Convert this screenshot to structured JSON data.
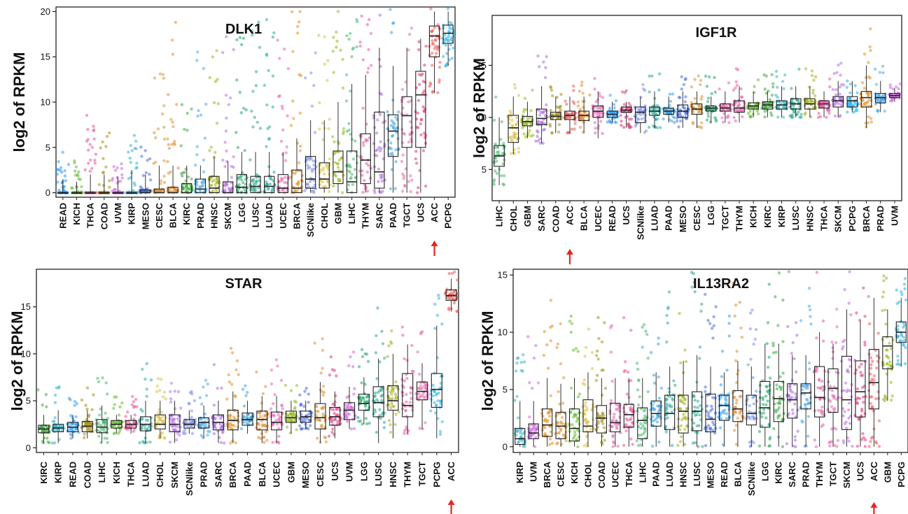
{
  "chart_data": [
    {
      "type": "box",
      "title": "DLK1",
      "ylabel": "log2 of RPKM",
      "ylim": [
        -0.5,
        20.5
      ],
      "yticks": [
        0,
        5,
        10,
        15,
        20
      ],
      "highlight": "ACC",
      "categories": [
        "READ",
        "KICH",
        "THCA",
        "COAD",
        "UVM",
        "KIRP",
        "MESO",
        "CESC",
        "BLCA",
        "KIRC",
        "PRAD",
        "HNSC",
        "SKCM",
        "LGG",
        "LUSC",
        "LUAD",
        "UCEC",
        "BRCA",
        "SCNlike",
        "CHOL",
        "GBM",
        "LIHC",
        "THYM",
        "SARC",
        "PAAD",
        "TGCT",
        "UCS",
        "ACC",
        "PCPG"
      ],
      "colors": [
        "#2f9df4",
        "#66bb33",
        "#e8559a",
        "#a68f1b",
        "#cc66dd",
        "#3bb3c6",
        "#4a6ed8",
        "#d6953a",
        "#e58a33",
        "#44a844",
        "#4aa8e8",
        "#a6b01f",
        "#b86fe8",
        "#22a86a",
        "#2fa58a",
        "#2faa9c",
        "#e861b5",
        "#e38f1f",
        "#7b8fe8",
        "#d9c046",
        "#98b81f",
        "#49b86f",
        "#e35fa5",
        "#aa69dd",
        "#3aa0e0",
        "#e56cad",
        "#dd3d7a",
        "#ee5a5a",
        "#2fb4e6"
      ],
      "boxes": [
        [
          0,
          0,
          0,
          0,
          1.5
        ],
        [
          0,
          0,
          0,
          0,
          1.2
        ],
        [
          0,
          0,
          0,
          0,
          2
        ],
        [
          0,
          0,
          0,
          0,
          2
        ],
        [
          0,
          0,
          0,
          0,
          1.8
        ],
        [
          0,
          0,
          0,
          0,
          2.5
        ],
        [
          0,
          0,
          0,
          0.3,
          2
        ],
        [
          0,
          0,
          0,
          0.4,
          3
        ],
        [
          0,
          0,
          0,
          0.6,
          3
        ],
        [
          0,
          0,
          0,
          1,
          3
        ],
        [
          0,
          0,
          0.4,
          1.5,
          3
        ],
        [
          0,
          0,
          0.5,
          1.8,
          4
        ],
        [
          0,
          0,
          0,
          1.2,
          3.5
        ],
        [
          0,
          0,
          0.6,
          2,
          4.5
        ],
        [
          0,
          0,
          0.7,
          1.8,
          4.5
        ],
        [
          0,
          0,
          0.7,
          1.8,
          4.5
        ],
        [
          0,
          0,
          0.5,
          2,
          4.5
        ],
        [
          0,
          0,
          0.5,
          2.5,
          6
        ],
        [
          0,
          0.5,
          1.5,
          4,
          8
        ],
        [
          0,
          0.5,
          1.5,
          3.3,
          8
        ],
        [
          0,
          1,
          2.3,
          4.6,
          10
        ],
        [
          0,
          0,
          1.2,
          4.6,
          12
        ],
        [
          0,
          1,
          3.6,
          6.5,
          13
        ],
        [
          0,
          0.5,
          2.3,
          8.9,
          16
        ],
        [
          0,
          4,
          6.8,
          8.6,
          14
        ],
        [
          0,
          5,
          8.5,
          10.6,
          16
        ],
        [
          0,
          5,
          10.8,
          13.4,
          17
        ],
        [
          11,
          15,
          17.3,
          18.4,
          20
        ],
        [
          14,
          16.5,
          17.6,
          18.5,
          20
        ]
      ],
      "spread": [
        3,
        3,
        8,
        5,
        2,
        5,
        4,
        11,
        17,
        8,
        13,
        15,
        15,
        14,
        15,
        15,
        14,
        18,
        10,
        10,
        12,
        19,
        14,
        17,
        14,
        16,
        17,
        20,
        20
      ]
    },
    {
      "type": "box",
      "title": "IGF1R",
      "ylabel": "log2 of RPKM",
      "ylim": [
        2,
        19.8
      ],
      "yticks": [
        5,
        10,
        15
      ],
      "highlight": "ACC",
      "categories": [
        "LIHC",
        "CHOL",
        "GBM",
        "SARC",
        "COAD",
        "ACC",
        "BLCA",
        "UCEC",
        "READ",
        "UCS",
        "SCNlike",
        "LUAD",
        "PAAD",
        "MESO",
        "CESC",
        "LGG",
        "TGCT",
        "THYM",
        "KICH",
        "KIRC",
        "KIRP",
        "LUSC",
        "HNSC",
        "THCA",
        "SKCM",
        "PCPG",
        "BRCA",
        "PRAD",
        "UVM"
      ],
      "colors": [
        "#49b86f",
        "#d9c046",
        "#98b81f",
        "#aa69dd",
        "#a68f1b",
        "#ee5a5a",
        "#e58a33",
        "#e861b5",
        "#2f9df4",
        "#dd3d7a",
        "#7b8fe8",
        "#2faa9c",
        "#3aa0e0",
        "#4a6ed8",
        "#d6953a",
        "#22a86a",
        "#e56cad",
        "#e35fa5",
        "#66bb33",
        "#44a844",
        "#3bb3c6",
        "#2fa58a",
        "#a6b01f",
        "#e8559a",
        "#b86fe8",
        "#2fb4e6",
        "#e38f1f",
        "#4aa8e8",
        "#cc66dd"
      ],
      "boxes": [
        [
          3.5,
          5.3,
          6.3,
          7.3,
          10
        ],
        [
          6.5,
          7.6,
          9,
          10.2,
          12
        ],
        [
          8,
          9.2,
          9.6,
          10.1,
          11.5
        ],
        [
          7.5,
          9.3,
          9.9,
          10.8,
          13
        ],
        [
          8.5,
          9.8,
          10.1,
          10.5,
          12
        ],
        [
          8.5,
          9.8,
          10.2,
          10.6,
          12
        ],
        [
          8.5,
          9.7,
          10.2,
          10.6,
          12
        ],
        [
          8,
          10,
          10.6,
          11.1,
          12.5
        ],
        [
          9.5,
          10,
          10.3,
          10.6,
          11.5
        ],
        [
          9,
          10.5,
          10.7,
          11,
          11.5
        ],
        [
          8.5,
          9.5,
          10.5,
          11,
          12
        ],
        [
          9,
          10.2,
          10.6,
          11,
          12.5
        ],
        [
          9.5,
          10.3,
          10.6,
          10.9,
          12
        ],
        [
          9,
          10,
          10.6,
          11.2,
          12.5
        ],
        [
          9,
          10.3,
          10.8,
          11.3,
          12.5
        ],
        [
          9.5,
          10.6,
          10.9,
          11.1,
          12
        ],
        [
          9.5,
          10.6,
          10.9,
          11.3,
          12.5
        ],
        [
          9.5,
          10.5,
          10.9,
          11.6,
          13
        ],
        [
          10,
          10.8,
          11.1,
          11.4,
          12.5
        ],
        [
          10,
          10.8,
          11.2,
          11.5,
          12.5
        ],
        [
          10,
          10.8,
          11.2,
          11.6,
          13
        ],
        [
          10,
          10.8,
          11.3,
          11.8,
          13
        ],
        [
          10,
          10.8,
          11.3,
          11.8,
          13
        ],
        [
          10,
          10.9,
          11.3,
          11.6,
          12.5
        ],
        [
          10,
          11,
          11.6,
          12,
          13.5
        ],
        [
          10.5,
          11,
          11.6,
          12,
          13.5
        ],
        [
          9,
          11,
          11.9,
          12.5,
          15
        ],
        [
          10.5,
          11.4,
          11.9,
          12.3,
          13.5
        ],
        [
          11.5,
          11.9,
          12.1,
          12.3,
          12.8
        ]
      ],
      "spread": [
        2,
        2,
        1.5,
        3,
        1.5,
        1.5,
        1.5,
        2,
        1.2,
        1.5,
        1.5,
        2,
        1.5,
        2,
        2,
        2,
        1.5,
        2,
        1.5,
        2,
        1.5,
        2,
        2,
        1.5,
        1.8,
        2,
        4,
        1.5,
        0.5
      ]
    },
    {
      "type": "box",
      "title": "STAR",
      "ylabel": "log2 of RPKM",
      "ylim": [
        -0.5,
        19
      ],
      "yticks": [
        0,
        5,
        10,
        15
      ],
      "highlight": "ACC",
      "categories": [
        "KIRC",
        "KIRP",
        "READ",
        "COAD",
        "LIHC",
        "KICH",
        "THCA",
        "LUAD",
        "CHOL",
        "SKCM",
        "SCNlike",
        "PRAD",
        "SARC",
        "BRCA",
        "PAAD",
        "BLCA",
        "UCEC",
        "GBM",
        "MESO",
        "CESC",
        "UCS",
        "UVM",
        "LGG",
        "LUSC",
        "HNSC",
        "THYM",
        "TGCT",
        "PCPG",
        "ACC"
      ],
      "colors": [
        "#44a844",
        "#3bb3c6",
        "#2f9df4",
        "#a68f1b",
        "#49b86f",
        "#66bb33",
        "#e8559a",
        "#2faa9c",
        "#d9c046",
        "#b86fe8",
        "#7b8fe8",
        "#4aa8e8",
        "#aa69dd",
        "#e38f1f",
        "#3aa0e0",
        "#e58a33",
        "#e861b5",
        "#98b81f",
        "#4a6ed8",
        "#d6953a",
        "#dd3d7a",
        "#cc66dd",
        "#22a86a",
        "#2fa58a",
        "#a6b01f",
        "#e35fa5",
        "#e56cad",
        "#2fb4e6",
        "#ee5a5a"
      ],
      "boxes": [
        [
          0.5,
          1.6,
          2,
          2.4,
          3.5
        ],
        [
          0.5,
          1.7,
          2.1,
          2.5,
          4
        ],
        [
          1,
          1.7,
          2.2,
          2.7,
          3.5
        ],
        [
          1,
          1.7,
          2.3,
          2.8,
          4
        ],
        [
          0.5,
          1.6,
          2.2,
          3,
          4.5
        ],
        [
          1.5,
          2.1,
          2.5,
          2.9,
          3.5
        ],
        [
          1.5,
          2.1,
          2.5,
          2.9,
          3.5
        ],
        [
          0.5,
          1.8,
          2.5,
          3.3,
          5
        ],
        [
          1,
          2,
          2.5,
          3.5,
          5
        ],
        [
          0.5,
          1.7,
          2.5,
          3.5,
          5
        ],
        [
          1.5,
          2.1,
          2.5,
          3,
          4
        ],
        [
          1,
          2.1,
          2.7,
          3.2,
          4.5
        ],
        [
          0.5,
          1.9,
          2.7,
          3.5,
          5
        ],
        [
          0.5,
          1.9,
          2.9,
          4,
          6
        ],
        [
          1.5,
          2.4,
          3,
          3.7,
          5
        ],
        [
          0.5,
          1.9,
          3,
          3.9,
          5.5
        ],
        [
          0.5,
          1.9,
          2.7,
          3.8,
          5.5
        ],
        [
          1.5,
          2.7,
          3.2,
          3.9,
          5
        ],
        [
          2,
          2.7,
          3.3,
          3.9,
          5
        ],
        [
          0.5,
          2,
          3.2,
          4.7,
          7
        ],
        [
          1,
          2.4,
          3.3,
          4.3,
          6
        ],
        [
          2,
          3,
          4,
          4.8,
          6.5
        ],
        [
          2.5,
          4,
          4.7,
          5.7,
          7.5
        ],
        [
          0.5,
          3.3,
          4.8,
          6.5,
          9.5
        ],
        [
          1,
          4,
          5,
          6.6,
          10
        ],
        [
          1.5,
          3.3,
          4.5,
          7.9,
          11
        ],
        [
          2,
          5.1,
          6,
          7,
          9
        ],
        [
          1,
          4.3,
          6.2,
          7.9,
          13
        ],
        [
          14.5,
          15.7,
          16.2,
          16.8,
          18
        ]
      ],
      "spread": [
        3,
        3,
        2,
        3,
        3,
        2,
        2,
        4,
        3,
        4,
        2,
        3,
        4,
        5,
        3,
        4,
        4,
        3,
        2,
        5,
        4,
        4,
        5,
        7,
        7,
        6,
        4,
        8,
        2
      ]
    },
    {
      "type": "box",
      "title": "IL13RA2",
      "ylabel": "log2 of RPKM",
      "ylim": [
        -0.5,
        15.5
      ],
      "yticks": [
        0,
        5,
        10,
        15
      ],
      "highlight": "ACC",
      "categories": [
        "KIRP",
        "UVM",
        "BRCA",
        "CESC",
        "KICH",
        "CHOL",
        "COAD",
        "UCEC",
        "THCA",
        "LIHC",
        "PAAD",
        "LUAD",
        "HNSC",
        "LUSC",
        "MESO",
        "READ",
        "BLCA",
        "SCNlike",
        "LGG",
        "KIRC",
        "SARC",
        "PRAD",
        "THYM",
        "TGCT",
        "SKCM",
        "UCS",
        "ACC",
        "GBM",
        "PCPG"
      ],
      "colors": [
        "#3bb3c6",
        "#cc66dd",
        "#e38f1f",
        "#d6953a",
        "#66bb33",
        "#d9c046",
        "#a68f1b",
        "#e861b5",
        "#e8559a",
        "#49b86f",
        "#3aa0e0",
        "#2faa9c",
        "#a6b01f",
        "#2fa58a",
        "#4a6ed8",
        "#2f9df4",
        "#e58a33",
        "#7b8fe8",
        "#22a86a",
        "#44a844",
        "#aa69dd",
        "#4aa8e8",
        "#e35fa5",
        "#e56cad",
        "#b86fe8",
        "#dd3d7a",
        "#ee5a5a",
        "#98b81f",
        "#2fb4e6"
      ],
      "boxes": [
        [
          0,
          0.2,
          0.7,
          1.6,
          4
        ],
        [
          0,
          0.7,
          1.2,
          2,
          4
        ],
        [
          0,
          0.9,
          1.9,
          3.3,
          6
        ],
        [
          0,
          0.7,
          1.8,
          3,
          5.5
        ],
        [
          0,
          0.5,
          1.6,
          3.3,
          6
        ],
        [
          0,
          1.3,
          1.8,
          4.1,
          6.5
        ],
        [
          0,
          1.2,
          2.5,
          3.6,
          6
        ],
        [
          0,
          1.3,
          2.1,
          3.8,
          6
        ],
        [
          0,
          1.7,
          2.8,
          3.7,
          6
        ],
        [
          0,
          0.7,
          2.3,
          3.4,
          6
        ],
        [
          0,
          1.8,
          2.9,
          4,
          6.5
        ],
        [
          0,
          1.5,
          2.9,
          4.5,
          7
        ],
        [
          0,
          1.2,
          3.1,
          4.5,
          7.5
        ],
        [
          0,
          1.4,
          3.1,
          4.8,
          8
        ],
        [
          0,
          1.3,
          2.4,
          4.6,
          7
        ],
        [
          0,
          2.3,
          3.6,
          4.5,
          6.5
        ],
        [
          0,
          2.2,
          3.3,
          4.9,
          7.5
        ],
        [
          0,
          1.9,
          2.9,
          4.5,
          7
        ],
        [
          0,
          1.7,
          3.4,
          5.7,
          9
        ],
        [
          0,
          2.2,
          4.2,
          5.7,
          9
        ],
        [
          0,
          2.5,
          4.1,
          5.5,
          8
        ],
        [
          0,
          3.3,
          4.7,
          5.5,
          8
        ],
        [
          0,
          2.6,
          4.3,
          7,
          10
        ],
        [
          0,
          3,
          5.1,
          6.8,
          9
        ],
        [
          0,
          1.5,
          4.1,
          7.9,
          12
        ],
        [
          0,
          2.6,
          4.8,
          7.5,
          11
        ],
        [
          0,
          3.3,
          5.6,
          8.5,
          13
        ],
        [
          4,
          6.8,
          8.8,
          9.6,
          12
        ],
        [
          7,
          9.1,
          10,
          10.9,
          13
        ]
      ],
      "spread": [
        6,
        6,
        7,
        6,
        6,
        5,
        6,
        7,
        6,
        7,
        6,
        7,
        7,
        8,
        8,
        5,
        7,
        5,
        8,
        8,
        9,
        8,
        8,
        7,
        12,
        10,
        8,
        5,
        5
      ]
    }
  ]
}
